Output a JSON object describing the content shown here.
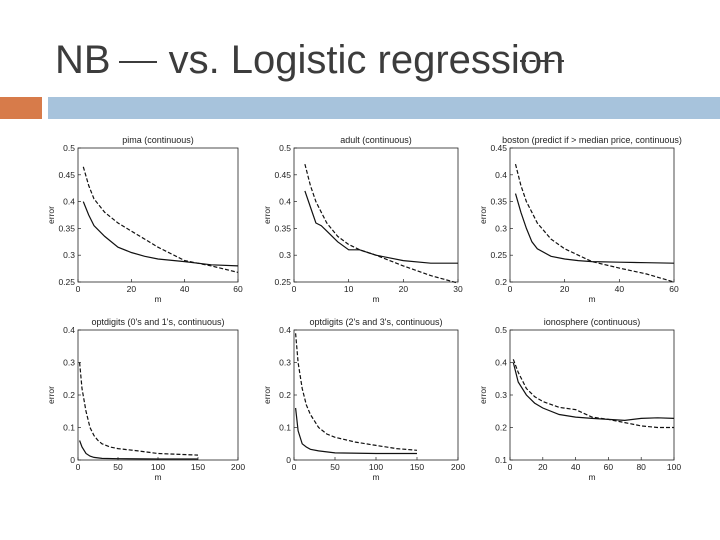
{
  "slide": {
    "title_prefix": "NB",
    "title_main": "vs. Logistic regressi",
    "title_tail": "on",
    "colors": {
      "accent_orange": "#d77b4a",
      "accent_blue": "#a7c3dc",
      "title": "#3c3c3c"
    }
  },
  "chart_data": [
    {
      "type": "line",
      "title": "pima (continuous)",
      "xlabel": "m",
      "ylabel": "error",
      "xlim": [
        0,
        60
      ],
      "ylim": [
        0.25,
        0.5
      ],
      "xticks": [
        0,
        20,
        40,
        60
      ],
      "yticks": [
        0.25,
        0.3,
        0.35,
        0.4,
        0.45,
        0.5
      ],
      "series": [
        {
          "style": "solid",
          "x": [
            2,
            4,
            6,
            10,
            15,
            20,
            25,
            30,
            40,
            50,
            60
          ],
          "y": [
            0.4,
            0.375,
            0.355,
            0.335,
            0.315,
            0.305,
            0.298,
            0.293,
            0.288,
            0.282,
            0.28
          ]
        },
        {
          "style": "dashed",
          "x": [
            2,
            4,
            6,
            10,
            15,
            20,
            25,
            30,
            40,
            50,
            60
          ],
          "y": [
            0.465,
            0.43,
            0.405,
            0.38,
            0.36,
            0.345,
            0.33,
            0.315,
            0.29,
            0.28,
            0.268
          ]
        }
      ]
    },
    {
      "type": "line",
      "title": "adult (continuous)",
      "xlabel": "m",
      "ylabel": "error",
      "xlim": [
        0,
        30
      ],
      "ylim": [
        0.25,
        0.5
      ],
      "xticks": [
        0,
        10,
        20,
        30
      ],
      "yticks": [
        0.25,
        0.3,
        0.35,
        0.4,
        0.45,
        0.5
      ],
      "series": [
        {
          "style": "solid",
          "x": [
            2,
            3,
            4,
            5,
            6,
            8,
            10,
            12,
            15,
            20,
            25,
            30
          ],
          "y": [
            0.42,
            0.39,
            0.36,
            0.355,
            0.345,
            0.325,
            0.31,
            0.31,
            0.3,
            0.29,
            0.285,
            0.285
          ]
        },
        {
          "style": "dashed",
          "x": [
            2,
            3,
            4,
            5,
            6,
            8,
            10,
            12,
            15,
            20,
            25,
            30
          ],
          "y": [
            0.47,
            0.43,
            0.4,
            0.38,
            0.36,
            0.335,
            0.32,
            0.31,
            0.3,
            0.28,
            0.262,
            0.248
          ]
        }
      ]
    },
    {
      "type": "line",
      "title": "boston (predict if > median price, continuous)",
      "xlabel": "m",
      "ylabel": "error",
      "xlim": [
        0,
        60
      ],
      "ylim": [
        0.2,
        0.45
      ],
      "xticks": [
        0,
        20,
        40,
        60
      ],
      "yticks": [
        0.2,
        0.25,
        0.3,
        0.35,
        0.4,
        0.45
      ],
      "series": [
        {
          "style": "solid",
          "x": [
            2,
            4,
            6,
            8,
            10,
            15,
            20,
            25,
            30,
            40,
            50,
            60
          ],
          "y": [
            0.365,
            0.33,
            0.3,
            0.275,
            0.262,
            0.248,
            0.243,
            0.24,
            0.238,
            0.237,
            0.236,
            0.235
          ]
        },
        {
          "style": "dashed",
          "x": [
            2,
            4,
            6,
            8,
            10,
            15,
            20,
            25,
            30,
            40,
            50,
            60
          ],
          "y": [
            0.42,
            0.38,
            0.35,
            0.33,
            0.31,
            0.28,
            0.262,
            0.25,
            0.238,
            0.226,
            0.215,
            0.2
          ]
        }
      ]
    },
    {
      "type": "line",
      "title": "optdigits (0's and 1's, continuous)",
      "xlabel": "m",
      "ylabel": "error",
      "xlim": [
        0,
        200
      ],
      "ylim": [
        0,
        0.4
      ],
      "xticks": [
        0,
        50,
        100,
        150,
        200
      ],
      "yticks": [
        0,
        0.1,
        0.2,
        0.3,
        0.4
      ],
      "series": [
        {
          "style": "solid",
          "x": [
            2,
            5,
            10,
            15,
            20,
            30,
            50,
            100,
            150
          ],
          "y": [
            0.06,
            0.04,
            0.02,
            0.012,
            0.008,
            0.005,
            0.004,
            0.003,
            0.003
          ]
        },
        {
          "style": "dashed",
          "x": [
            2,
            5,
            10,
            15,
            20,
            25,
            30,
            40,
            50,
            75,
            100,
            150
          ],
          "y": [
            0.3,
            0.22,
            0.15,
            0.1,
            0.075,
            0.06,
            0.05,
            0.04,
            0.035,
            0.028,
            0.02,
            0.015
          ]
        }
      ]
    },
    {
      "type": "line",
      "title": "optdigits (2's and 3's, continuous)",
      "xlabel": "m",
      "ylabel": "error",
      "xlim": [
        0,
        200
      ],
      "ylim": [
        0,
        0.4
      ],
      "xticks": [
        0,
        50,
        100,
        150,
        200
      ],
      "yticks": [
        0,
        0.1,
        0.2,
        0.3,
        0.4
      ],
      "series": [
        {
          "style": "solid",
          "x": [
            2,
            5,
            10,
            15,
            20,
            30,
            50,
            100,
            150
          ],
          "y": [
            0.16,
            0.09,
            0.05,
            0.04,
            0.033,
            0.028,
            0.022,
            0.02,
            0.02
          ]
        },
        {
          "style": "dashed",
          "x": [
            2,
            5,
            10,
            15,
            20,
            30,
            40,
            50,
            75,
            100,
            125,
            150
          ],
          "y": [
            0.39,
            0.3,
            0.22,
            0.17,
            0.14,
            0.1,
            0.08,
            0.07,
            0.055,
            0.045,
            0.035,
            0.03
          ]
        }
      ]
    },
    {
      "type": "line",
      "title": "ionosphere (continuous)",
      "xlabel": "m",
      "ylabel": "error",
      "xlim": [
        0,
        100
      ],
      "ylim": [
        0.1,
        0.5
      ],
      "xticks": [
        0,
        20,
        40,
        60,
        80,
        100
      ],
      "yticks": [
        0.1,
        0.2,
        0.3,
        0.4,
        0.5
      ],
      "series": [
        {
          "style": "solid",
          "x": [
            2,
            5,
            10,
            15,
            20,
            30,
            40,
            50,
            60,
            70,
            80,
            90,
            100
          ],
          "y": [
            0.4,
            0.34,
            0.3,
            0.275,
            0.26,
            0.24,
            0.232,
            0.228,
            0.225,
            0.222,
            0.228,
            0.23,
            0.228
          ]
        },
        {
          "style": "dashed",
          "x": [
            2,
            5,
            10,
            15,
            20,
            30,
            40,
            50,
            60,
            70,
            80,
            90,
            100
          ],
          "y": [
            0.41,
            0.37,
            0.32,
            0.295,
            0.28,
            0.262,
            0.255,
            0.232,
            0.225,
            0.215,
            0.205,
            0.2,
            0.2
          ]
        }
      ]
    }
  ]
}
